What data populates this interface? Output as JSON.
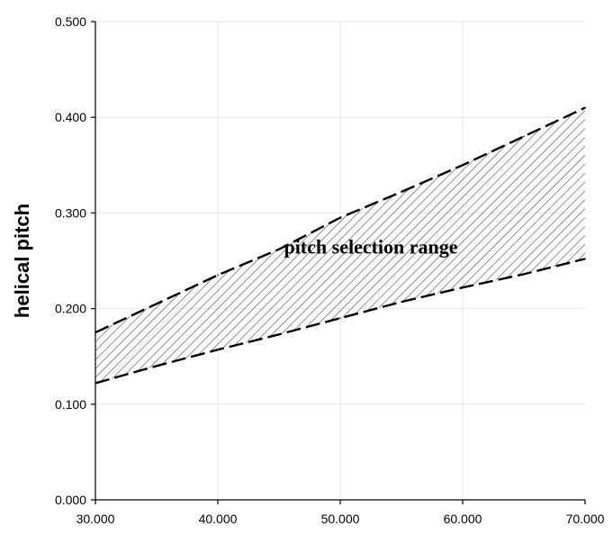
{
  "chart_data": {
    "type": "area",
    "title": "",
    "xlabel": "",
    "ylabel": "helical pitch",
    "xlim": [
      30,
      70
    ],
    "ylim": [
      0,
      0.5
    ],
    "x_ticks": [
      "30.000",
      "40.000",
      "50.000",
      "60.000",
      "70.000"
    ],
    "y_ticks": [
      "0.000",
      "0.100",
      "0.200",
      "0.300",
      "0.400",
      "0.500"
    ],
    "grid": true,
    "series": [
      {
        "role": "upper-bound",
        "x": [
          30,
          35,
          40,
          45,
          50,
          55,
          60,
          65,
          70
        ],
        "y": [
          0.175,
          0.205,
          0.235,
          0.262,
          0.295,
          0.322,
          0.35,
          0.38,
          0.41
        ]
      },
      {
        "role": "lower-bound",
        "x": [
          30,
          35,
          40,
          45,
          50,
          55,
          60,
          65,
          70
        ],
        "y": [
          0.122,
          0.14,
          0.157,
          0.173,
          0.19,
          0.207,
          0.222,
          0.236,
          0.252
        ]
      }
    ],
    "annotation": {
      "text": "pitch selection range",
      "x": 52.5,
      "y": 0.265
    }
  }
}
